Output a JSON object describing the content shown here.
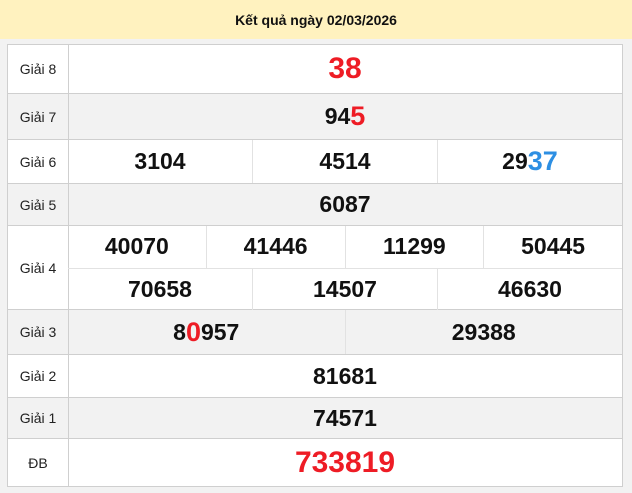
{
  "title": "Kết quả ngày 02/03/2026",
  "colors": {
    "red": "#ee1c25",
    "blue": "#2d8fe3",
    "black": "#111111"
  },
  "rows": [
    {
      "label": "Giải 8",
      "gray": false,
      "lines": [
        [
          {
            "parts": [
              {
                "text": "38",
                "color": "red",
                "highlight": true
              }
            ],
            "big": true
          }
        ]
      ]
    },
    {
      "label": "Giải 7",
      "gray": true,
      "lines": [
        [
          {
            "parts": [
              {
                "text": "94",
                "color": "black"
              },
              {
                "text": "5",
                "color": "red",
                "highlight": true
              }
            ]
          }
        ]
      ]
    },
    {
      "label": "Giải 6",
      "gray": false,
      "lines": [
        [
          {
            "parts": [
              {
                "text": "3104",
                "color": "black"
              }
            ]
          },
          {
            "parts": [
              {
                "text": "4514",
                "color": "black"
              }
            ]
          },
          {
            "parts": [
              {
                "text": "29",
                "color": "black"
              },
              {
                "text": "37",
                "color": "blue",
                "highlight": true
              }
            ]
          }
        ]
      ]
    },
    {
      "label": "Giải 5",
      "gray": true,
      "lines": [
        [
          {
            "parts": [
              {
                "text": "6087",
                "color": "black"
              }
            ]
          }
        ]
      ]
    },
    {
      "label": "Giải 4",
      "gray": false,
      "lines": [
        [
          {
            "parts": [
              {
                "text": "40070",
                "color": "black"
              }
            ]
          },
          {
            "parts": [
              {
                "text": "41446",
                "color": "black"
              }
            ]
          },
          {
            "parts": [
              {
                "text": "11299",
                "color": "black"
              }
            ]
          },
          {
            "parts": [
              {
                "text": "50445",
                "color": "black"
              }
            ]
          }
        ],
        [
          {
            "parts": [
              {
                "text": "70658",
                "color": "black"
              }
            ]
          },
          {
            "parts": [
              {
                "text": "14507",
                "color": "black"
              }
            ]
          },
          {
            "parts": [
              {
                "text": "46630",
                "color": "black"
              }
            ]
          }
        ]
      ]
    },
    {
      "label": "Giải 3",
      "gray": true,
      "lines": [
        [
          {
            "parts": [
              {
                "text": "8",
                "color": "black"
              },
              {
                "text": "0",
                "color": "red",
                "highlight": true
              },
              {
                "text": "957",
                "color": "black"
              }
            ]
          },
          {
            "parts": [
              {
                "text": "29388",
                "color": "black"
              }
            ]
          }
        ]
      ]
    },
    {
      "label": "Giải 2",
      "gray": false,
      "lines": [
        [
          {
            "parts": [
              {
                "text": "81681",
                "color": "black"
              }
            ]
          }
        ]
      ]
    },
    {
      "label": "Giải 1",
      "gray": true,
      "lines": [
        [
          {
            "parts": [
              {
                "text": "74571",
                "color": "black"
              }
            ]
          }
        ]
      ]
    },
    {
      "label": "ĐB",
      "gray": false,
      "lines": [
        [
          {
            "parts": [
              {
                "text": "733819",
                "color": "red",
                "highlight": true
              }
            ],
            "big": true
          }
        ]
      ]
    }
  ]
}
